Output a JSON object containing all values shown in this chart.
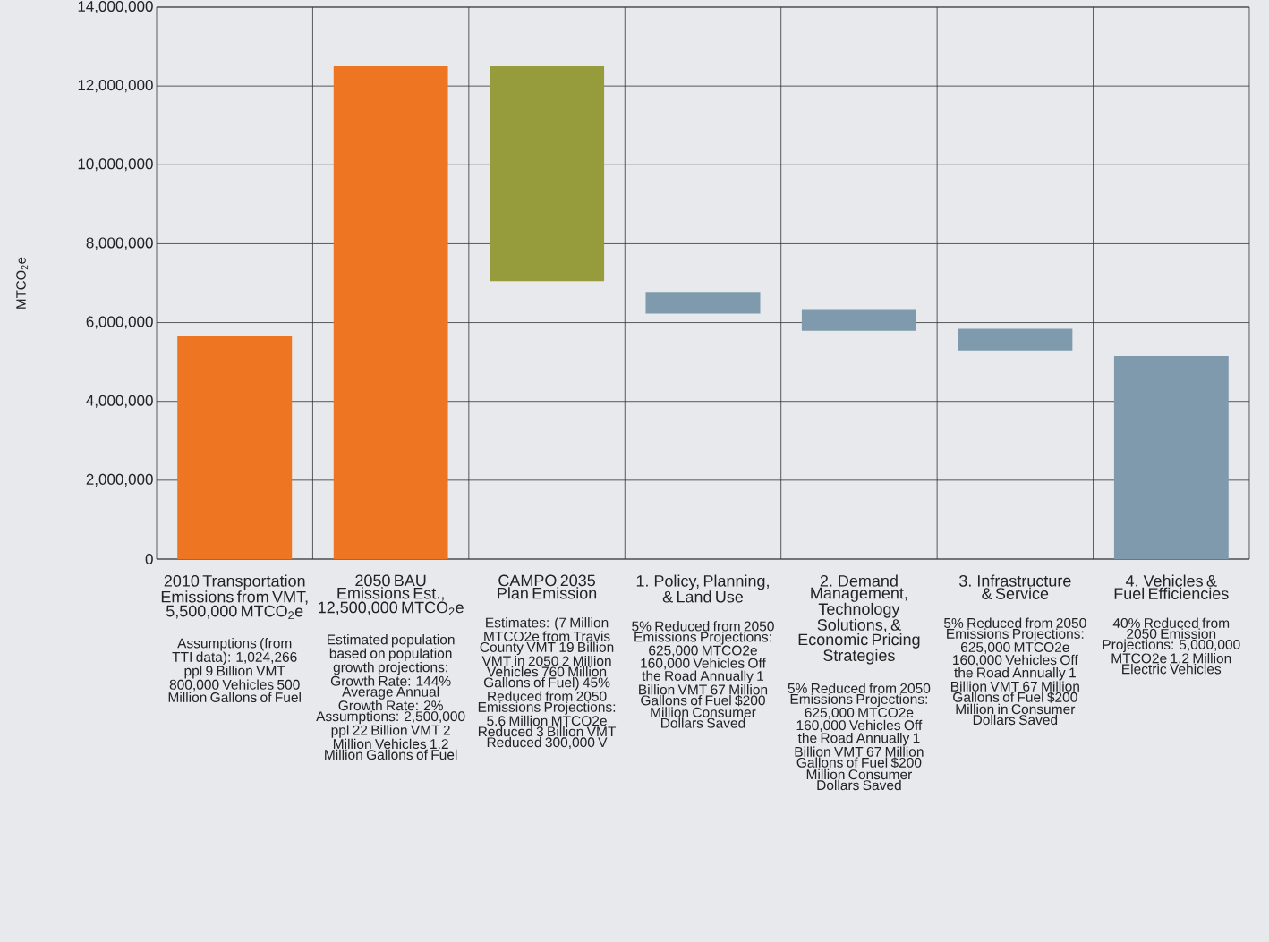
{
  "chart_data": {
    "type": "bar",
    "ylabel": "MTCO$_{2}$e",
    "categories": [
      "2010 Transportation Emissions from VMT, 5,500,000 MTCO$_{2}$e",
      "2050 BAU Emissions Est., 12,500,000 MTCO$_{2}$e",
      "CAMPO 2035 Plan Emission",
      "1. Policy, Planning, & Land Use",
      "2. Demand Management, Technology Solutions, & Economic Pricing Strategies",
      "3. Infrastructure & Service",
      "4. Vehicles & Fuel Efficiencies"
    ],
    "values": [
      5650000,
      12500000,
      5450000,
      550000,
      550000,
      550000,
      5150000
    ],
    "base": [
      0,
      0,
      7050000,
      6230000,
      5790000,
      5290000,
      0
    ],
    "colors": [
      "#ee7623",
      "#ee7623",
      "#969c3c",
      "#7f9aad",
      "#7f9aad",
      "#7f9aad",
      "#7f9aad"
    ],
    "ylim": [
      0,
      14000000
    ],
    "yticks": [
      0,
      {
        "value": 2000000,
        "label": "2,000,000"
      },
      {
        "value": 4000000,
        "label": "4,000,000"
      },
      {
        "value": 6000000,
        "label": "6,000,000"
      },
      {
        "value": 8000000,
        "label": "8,000,000"
      },
      {
        "value": 10000000,
        "label": "10,000,000"
      },
      {
        "value": 12000000,
        "label": "12,000,000"
      },
      {
        "value": 14000000,
        "label": "14,000,000"
      }
    ],
    "grid": true,
    "annotations": [
      "Assumptions (from TTI data): 1,024,266 ppl 9 Billion VMT 800,000 Vehicles 500 Million Gallons of Fuel",
      "Estimated population based on population growth projections: Growth Rate: 144% Average Annual Growth Rate: 2% Assumptions: 2,500,000 ppl 22 Billion VMT 2 Million Vehicles 1.2 Million Gallons of Fuel",
      "Estimates: (7 Million MTCO2e from Travis County VMT 19 Billion VMT in 2050 2 Million Vehicles 760 Million Gallons of Fuel) 45% Reduced from 2050 Emissions Projections: 5.6 Million MTCO2e Reduced 3 Billion VMT Reduced 300,000 V",
      "5% Reduced from 2050 Emissions Projections: 625,000 MTCO2e 160,000 Vehicles Off the Road Annually 1 Billion VMT 67 Million Gallons of Fuel $200 Million Consumer Dollars Saved",
      "5% Reduced from 2050 Emissions Projections: 625,000 MTCO2e 160,000 Vehicles Off the Road Annually 1 Billion VMT 67 Million Gallons of Fuel $200 Million Consumer Dollars Saved",
      "5% Reduced from 2050 Emissions Projections: 625,000 MTCO2e 160,000 Vehicles Off the Road Annually 1 Billion VMT 67 Million Gallons of Fuel $200 Million in Consumer Dollars Saved",
      "40% Reduced from 2050 Emission Projections: 5,000,000 MTCO2e 1.2 Million Electric Vehicles"
    ]
  }
}
